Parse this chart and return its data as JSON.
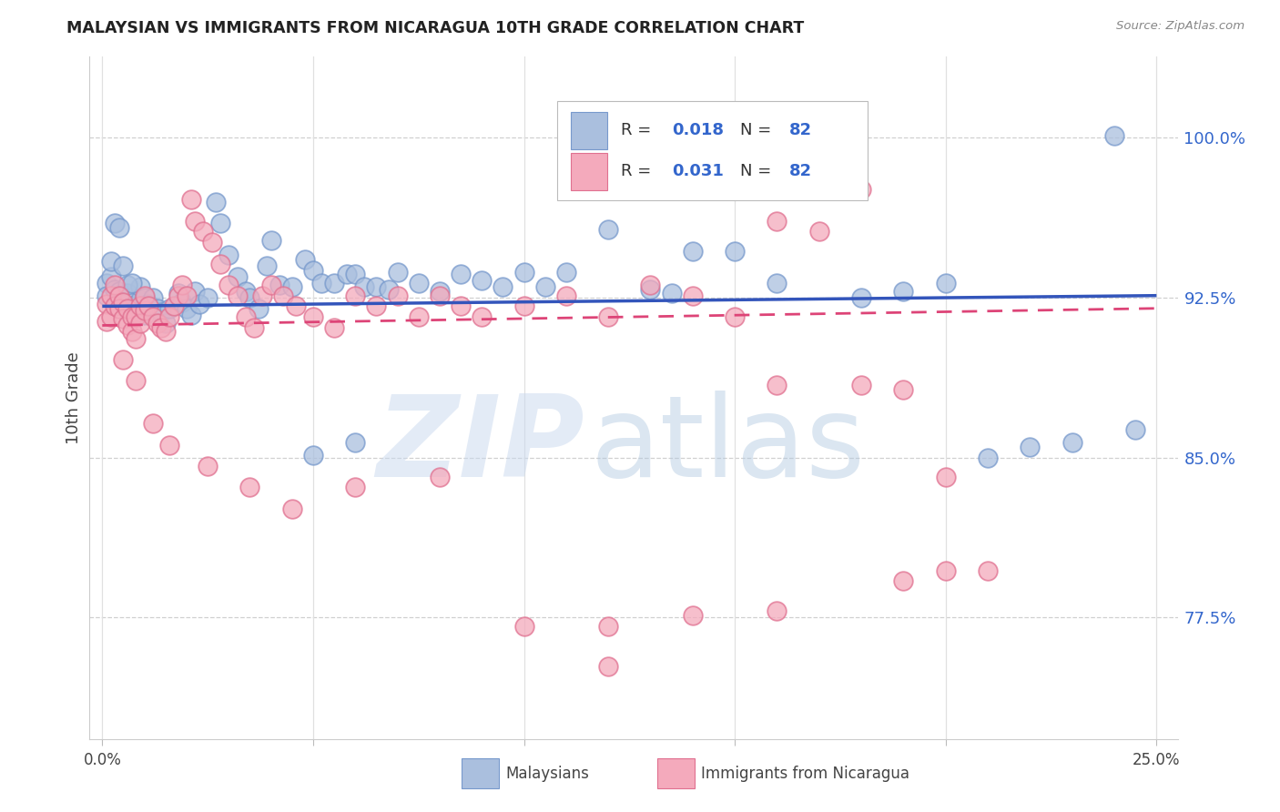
{
  "title": "MALAYSIAN VS IMMIGRANTS FROM NICARAGUA 10TH GRADE CORRELATION CHART",
  "source": "Source: ZipAtlas.com",
  "ylabel": "10th Grade",
  "ytick_values": [
    0.775,
    0.85,
    0.925,
    1.0
  ],
  "ytick_labels": [
    "77.5%",
    "85.0%",
    "92.5%",
    "100.0%"
  ],
  "xlim": [
    -0.003,
    0.255
  ],
  "ylim": [
    0.718,
    1.038
  ],
  "blue_color": "#aabfde",
  "blue_edge": "#7799cc",
  "pink_color": "#f4aabc",
  "pink_edge": "#e07090",
  "line_blue_color": "#3355bb",
  "line_pink_color": "#dd4477",
  "grid_color": "#d0d0d0",
  "blue_r": "0.018",
  "blue_n": "82",
  "pink_r": "0.031",
  "pink_n": "82",
  "blue_line_x0": 0.0,
  "blue_line_x1": 0.25,
  "blue_line_y0": 0.921,
  "blue_line_y1": 0.926,
  "pink_line_x0": 0.0,
  "pink_line_x1": 0.25,
  "pink_line_y0": 0.912,
  "pink_line_y1": 0.92,
  "blue_x": [
    0.001,
    0.001,
    0.002,
    0.002,
    0.003,
    0.003,
    0.004,
    0.004,
    0.005,
    0.005,
    0.006,
    0.006,
    0.007,
    0.008,
    0.008,
    0.009,
    0.009,
    0.01,
    0.01,
    0.011,
    0.012,
    0.013,
    0.014,
    0.015,
    0.016,
    0.018,
    0.019,
    0.02,
    0.021,
    0.022,
    0.023,
    0.025,
    0.027,
    0.028,
    0.03,
    0.032,
    0.034,
    0.035,
    0.037,
    0.039,
    0.04,
    0.042,
    0.045,
    0.048,
    0.05,
    0.052,
    0.055,
    0.058,
    0.06,
    0.062,
    0.065,
    0.068,
    0.07,
    0.075,
    0.08,
    0.085,
    0.09,
    0.095,
    0.1,
    0.105,
    0.11,
    0.12,
    0.13,
    0.135,
    0.14,
    0.15,
    0.16,
    0.165,
    0.17,
    0.18,
    0.19,
    0.2,
    0.21,
    0.22,
    0.23,
    0.24,
    0.245,
    0.006,
    0.007,
    0.009,
    0.05,
    0.06
  ],
  "blue_y": [
    0.932,
    0.926,
    0.935,
    0.942,
    0.929,
    0.96,
    0.958,
    0.928,
    0.922,
    0.94,
    0.919,
    0.927,
    0.921,
    0.92,
    0.916,
    0.924,
    0.93,
    0.917,
    0.925,
    0.922,
    0.925,
    0.92,
    0.918,
    0.913,
    0.92,
    0.927,
    0.923,
    0.92,
    0.917,
    0.928,
    0.922,
    0.925,
    0.97,
    0.96,
    0.945,
    0.935,
    0.928,
    0.925,
    0.92,
    0.94,
    0.952,
    0.931,
    0.93,
    0.943,
    0.938,
    0.932,
    0.932,
    0.936,
    0.936,
    0.93,
    0.93,
    0.929,
    0.937,
    0.932,
    0.928,
    0.936,
    0.933,
    0.93,
    0.937,
    0.93,
    0.937,
    0.957,
    0.929,
    0.927,
    0.947,
    0.947,
    0.932,
    0.99,
    0.977,
    0.925,
    0.928,
    0.932,
    0.85,
    0.855,
    0.857,
    1.001,
    0.863,
    0.931,
    0.932,
    0.918,
    0.851,
    0.857
  ],
  "pink_x": [
    0.001,
    0.001,
    0.002,
    0.002,
    0.003,
    0.003,
    0.004,
    0.004,
    0.005,
    0.005,
    0.006,
    0.006,
    0.007,
    0.007,
    0.008,
    0.008,
    0.009,
    0.009,
    0.01,
    0.01,
    0.011,
    0.012,
    0.013,
    0.014,
    0.015,
    0.016,
    0.017,
    0.018,
    0.019,
    0.02,
    0.021,
    0.022,
    0.024,
    0.026,
    0.028,
    0.03,
    0.032,
    0.034,
    0.036,
    0.038,
    0.04,
    0.043,
    0.046,
    0.05,
    0.055,
    0.06,
    0.065,
    0.07,
    0.075,
    0.08,
    0.085,
    0.09,
    0.1,
    0.11,
    0.12,
    0.13,
    0.14,
    0.15,
    0.16,
    0.17,
    0.18,
    0.19,
    0.2,
    0.21,
    0.005,
    0.008,
    0.012,
    0.016,
    0.025,
    0.035,
    0.045,
    0.06,
    0.08,
    0.1,
    0.12,
    0.14,
    0.16,
    0.18,
    0.19,
    0.2,
    0.16,
    0.12
  ],
  "pink_y": [
    0.922,
    0.914,
    0.926,
    0.916,
    0.931,
    0.921,
    0.926,
    0.92,
    0.923,
    0.915,
    0.912,
    0.92,
    0.916,
    0.909,
    0.906,
    0.916,
    0.921,
    0.913,
    0.919,
    0.926,
    0.921,
    0.916,
    0.913,
    0.911,
    0.909,
    0.916,
    0.921,
    0.926,
    0.931,
    0.926,
    0.971,
    0.961,
    0.956,
    0.951,
    0.941,
    0.931,
    0.926,
    0.916,
    0.911,
    0.926,
    0.931,
    0.926,
    0.921,
    0.916,
    0.911,
    0.926,
    0.921,
    0.926,
    0.916,
    0.926,
    0.921,
    0.916,
    0.921,
    0.926,
    0.916,
    0.931,
    0.926,
    0.916,
    0.961,
    0.956,
    0.976,
    0.882,
    0.841,
    0.797,
    0.896,
    0.886,
    0.866,
    0.856,
    0.846,
    0.836,
    0.826,
    0.836,
    0.841,
    0.771,
    0.771,
    0.776,
    0.884,
    0.884,
    0.792,
    0.797,
    0.778,
    0.752
  ]
}
